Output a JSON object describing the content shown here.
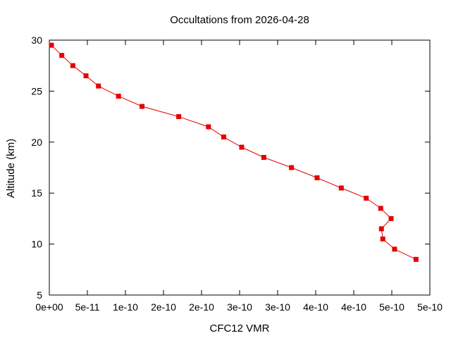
{
  "chart_data": {
    "type": "line",
    "title": "Occultations from 2026-04-28",
    "xlabel": "CFC12 VMR",
    "ylabel": "Altitude (km)",
    "xlim": [
      0,
      5.5e-10
    ],
    "ylim": [
      5,
      30
    ],
    "x_tick_values": [
      0,
      5.5e-11,
      1.1e-10,
      1.65e-10,
      2.2e-10,
      2.75e-10,
      3.3e-10,
      3.85e-10,
      4.4e-10,
      4.95e-10,
      5.5e-10
    ],
    "x_tick_labels": [
      "0e+00",
      "5e-11",
      "1e-10",
      "2e-10",
      "2e-10",
      "3e-10",
      "3e-10",
      "4e-10",
      "4e-10",
      "5e-10",
      "5e-10"
    ],
    "y_ticks": [
      5,
      10,
      15,
      20,
      25,
      30
    ],
    "grid": false,
    "legend": "none",
    "series_color": "#e60000",
    "series": [
      {
        "x": [
          3e-12,
          1.8e-11,
          3.4e-11,
          5.3e-11,
          7.1e-11,
          1e-10,
          1.34e-10,
          1.87e-10,
          2.3e-10,
          2.52e-10,
          2.78e-10,
          3.1e-10,
          3.5e-10,
          3.87e-10,
          4.22e-10,
          4.58e-10,
          4.79e-10,
          4.94e-10,
          4.8e-10,
          4.82e-10,
          4.99e-10,
          5.3e-10
        ],
        "y": [
          29.5,
          28.5,
          27.5,
          26.5,
          25.5,
          24.5,
          23.5,
          22.5,
          21.5,
          20.5,
          19.5,
          18.5,
          17.5,
          16.5,
          15.5,
          14.5,
          13.5,
          12.5,
          11.5,
          10.5,
          9.5,
          8.5
        ]
      }
    ]
  }
}
